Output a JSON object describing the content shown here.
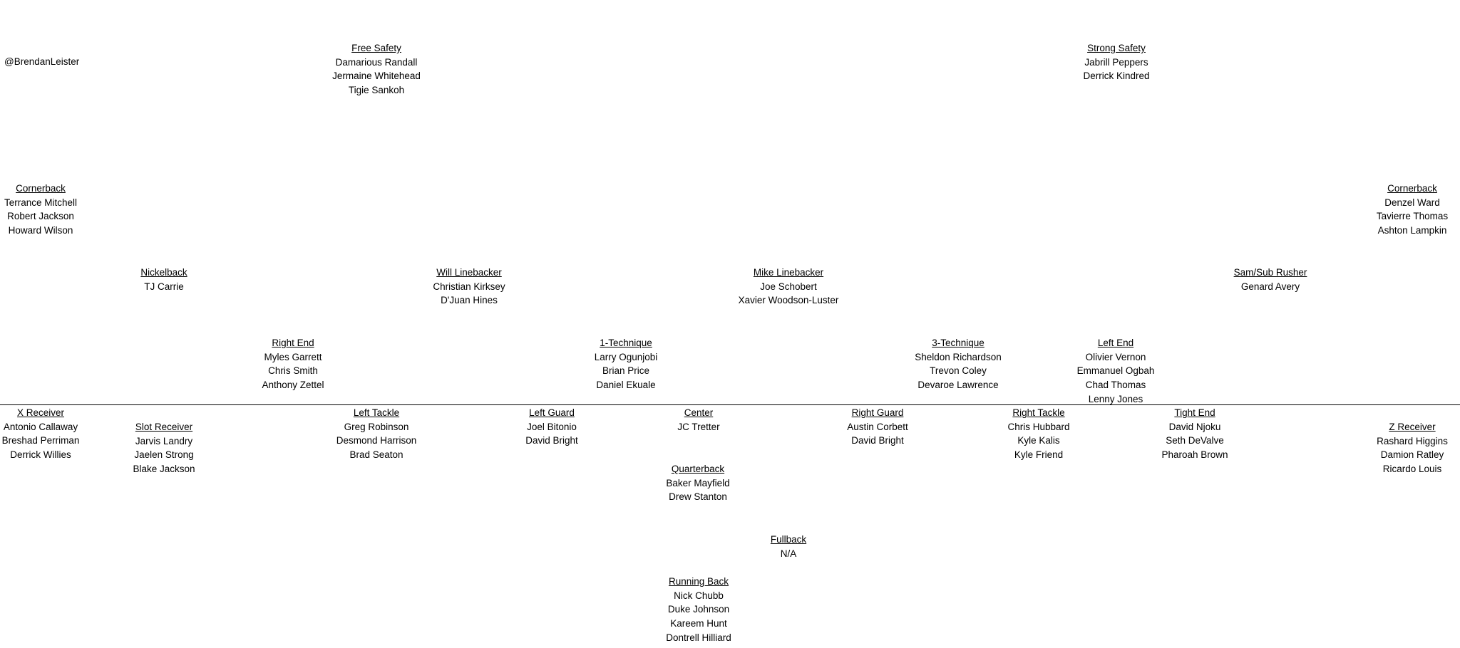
{
  "handle": "@BrendanLeister",
  "defense": {
    "free_safety": {
      "title": "Free Safety",
      "players": [
        "Damarious Randall",
        "Jermaine Whitehead",
        "Tigie Sankoh"
      ]
    },
    "strong_safety": {
      "title": "Strong Safety",
      "players": [
        "Jabrill Peppers",
        "Derrick Kindred"
      ]
    },
    "cornerback_left": {
      "title": "Cornerback",
      "players": [
        "Terrance Mitchell",
        "Robert Jackson",
        "Howard Wilson"
      ]
    },
    "cornerback_right": {
      "title": "Cornerback",
      "players": [
        "Denzel Ward",
        "Tavierre Thomas",
        "Ashton Lampkin"
      ]
    },
    "nickelback": {
      "title": "Nickelback",
      "players": [
        "TJ Carrie"
      ]
    },
    "will_linebacker": {
      "title": "Will Linebacker",
      "players": [
        "Christian Kirksey",
        "D'Juan Hines"
      ]
    },
    "mike_linebacker": {
      "title": "Mike Linebacker",
      "players": [
        "Joe Schobert",
        "Xavier Woodson-Luster"
      ]
    },
    "sam_rusher": {
      "title": "Sam/Sub Rusher",
      "players": [
        "Genard Avery"
      ]
    },
    "right_end": {
      "title": "Right End",
      "players": [
        "Myles Garrett",
        "Chris Smith",
        "Anthony Zettel"
      ]
    },
    "one_technique": {
      "title": "1-Technique",
      "players": [
        "Larry Ogunjobi",
        "Brian Price",
        "Daniel Ekuale"
      ]
    },
    "three_technique": {
      "title": "3-Technique",
      "players": [
        "Sheldon Richardson",
        "Trevon Coley",
        "Devaroe Lawrence"
      ]
    },
    "left_end": {
      "title": "Left End",
      "players": [
        "Olivier Vernon",
        "Emmanuel Ogbah",
        "Chad Thomas",
        "Lenny Jones"
      ]
    }
  },
  "offense": {
    "x_receiver": {
      "title": "X Receiver",
      "players": [
        "Antonio Callaway",
        "Breshad Perriman",
        "Derrick Willies"
      ]
    },
    "slot_receiver": {
      "title": "Slot Receiver",
      "players": [
        "Jarvis Landry",
        "Jaelen Strong",
        "Blake Jackson"
      ]
    },
    "left_tackle": {
      "title": "Left Tackle",
      "players": [
        "Greg Robinson",
        "Desmond Harrison",
        "Brad Seaton"
      ]
    },
    "left_guard": {
      "title": "Left Guard",
      "players": [
        "Joel Bitonio",
        "David Bright"
      ]
    },
    "center": {
      "title": "Center",
      "players": [
        "JC Tretter"
      ]
    },
    "right_guard": {
      "title": "Right Guard",
      "players": [
        "Austin Corbett",
        "David Bright"
      ]
    },
    "right_tackle": {
      "title": "Right Tackle",
      "players": [
        "Chris Hubbard",
        "Kyle Kalis",
        "Kyle Friend"
      ]
    },
    "tight_end": {
      "title": "Tight End",
      "players": [
        "David Njoku",
        "Seth DeValve",
        "Pharoah Brown"
      ]
    },
    "z_receiver": {
      "title": "Z Receiver",
      "players": [
        "Rashard Higgins",
        "Damion Ratley",
        "Ricardo Louis"
      ]
    },
    "quarterback": {
      "title": "Quarterback",
      "players": [
        "Baker Mayfield",
        "Drew Stanton"
      ]
    },
    "fullback": {
      "title": "Fullback",
      "players": [
        "N/A"
      ]
    },
    "running_back": {
      "title": "Running Back",
      "players": [
        "Nick Chubb",
        "Duke Johnson",
        "Kareem Hunt",
        "Dontrell Hilliard"
      ]
    }
  }
}
